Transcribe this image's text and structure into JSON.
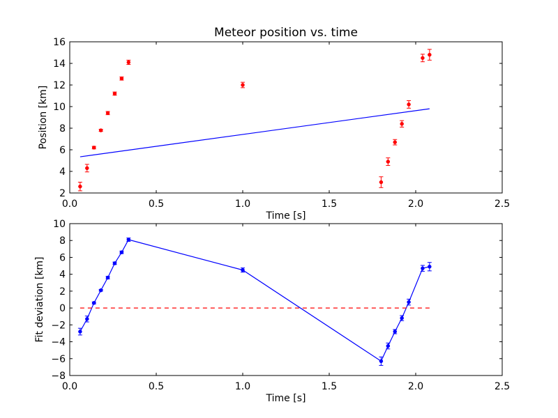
{
  "chart_data": [
    {
      "type": "scatter",
      "title": "Meteor position vs. time",
      "xlabel": "Time [s]",
      "ylabel": "Position [km]",
      "xlim": [
        0.0,
        2.5
      ],
      "ylim": [
        2,
        16
      ],
      "xticks": [
        "0.0",
        "0.5",
        "1.0",
        "1.5",
        "2.0",
        "2.5"
      ],
      "yticks": [
        "2",
        "4",
        "6",
        "8",
        "10",
        "12",
        "14",
        "16"
      ],
      "grid": false,
      "series": [
        {
          "style": "points-with-errorbars",
          "color": "#ff0000",
          "x": [
            0.06,
            0.1,
            0.14,
            0.18,
            0.22,
            0.26,
            0.3,
            0.34,
            1.0,
            1.8,
            1.84,
            1.88,
            1.92,
            1.96,
            2.04,
            2.08
          ],
          "y": [
            2.6,
            4.3,
            6.2,
            7.8,
            9.4,
            11.2,
            12.6,
            14.1,
            12.0,
            3.0,
            4.9,
            6.7,
            8.4,
            10.2,
            14.5,
            14.8
          ],
          "err": [
            0.4,
            0.35,
            0.12,
            0.1,
            0.15,
            0.15,
            0.15,
            0.2,
            0.25,
            0.5,
            0.35,
            0.25,
            0.3,
            0.35,
            0.35,
            0.5
          ]
        },
        {
          "style": "line",
          "color": "#0000ff",
          "x": [
            0.06,
            2.08
          ],
          "y": [
            5.35,
            9.8
          ]
        }
      ]
    },
    {
      "type": "line",
      "title": "",
      "xlabel": "Time [s]",
      "ylabel": "Fit deviation [km]",
      "xlim": [
        0.0,
        2.5
      ],
      "ylim": [
        -8,
        10
      ],
      "xticks": [
        "0.0",
        "0.5",
        "1.0",
        "1.5",
        "2.0",
        "2.5"
      ],
      "yticks": [
        "−8",
        "−6",
        "−4",
        "−2",
        "0",
        "2",
        "4",
        "6",
        "8",
        "10"
      ],
      "grid": false,
      "series": [
        {
          "style": "line-points-with-errorbars",
          "color": "#0000ff",
          "x": [
            0.06,
            0.1,
            0.14,
            0.18,
            0.22,
            0.26,
            0.3,
            0.34,
            1.0,
            1.8,
            1.84,
            1.88,
            1.92,
            1.96,
            2.04,
            2.08
          ],
          "y": [
            -2.8,
            -1.3,
            0.6,
            2.1,
            3.6,
            5.3,
            6.6,
            8.1,
            4.5,
            -6.3,
            -4.5,
            -2.8,
            -1.2,
            0.7,
            4.7,
            4.9
          ],
          "err": [
            0.4,
            0.35,
            0.12,
            0.1,
            0.15,
            0.15,
            0.15,
            0.2,
            0.25,
            0.5,
            0.35,
            0.25,
            0.3,
            0.35,
            0.35,
            0.5
          ]
        },
        {
          "style": "dashed-line",
          "color": "#ff0000",
          "x": [
            0.06,
            2.08
          ],
          "y": [
            0,
            0
          ]
        }
      ]
    }
  ]
}
